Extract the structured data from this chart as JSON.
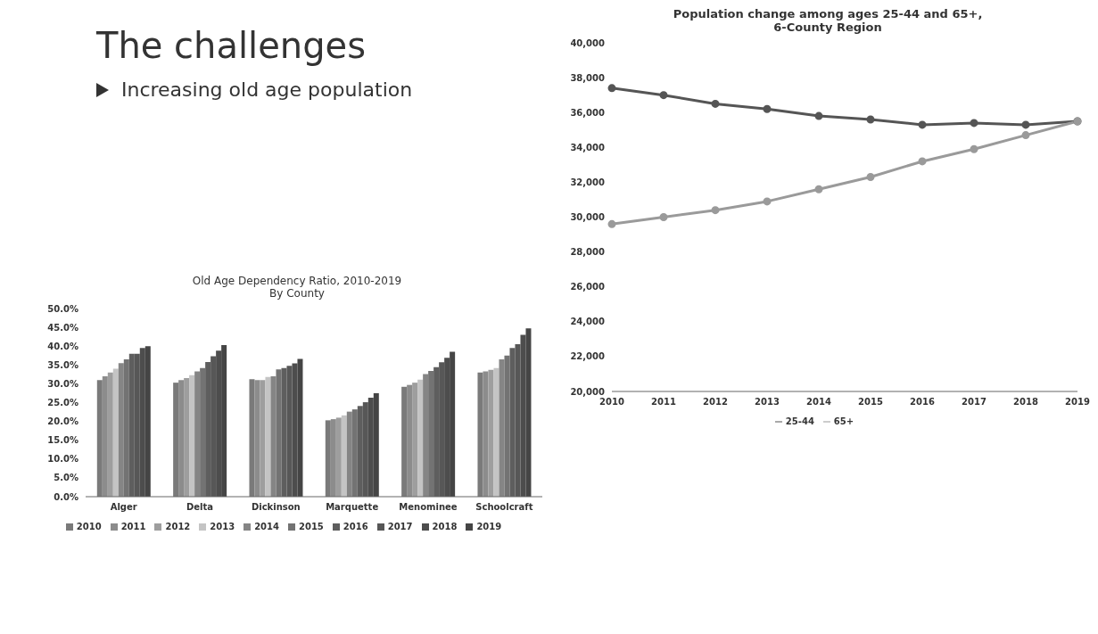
{
  "chart_data": [
    {
      "type": "other",
      "title": "The challenges",
      "annotations": [
        "Increasing old age population"
      ]
    },
    {
      "type": "bar",
      "title": "Old Age Dependency Ratio, 2010-2019\nBy County",
      "categories": [
        "Alger",
        "Delta",
        "Dickinson",
        "Marquette",
        "Menominee",
        "Schoolcraft"
      ],
      "series": [
        {
          "name": "2010",
          "color": "#7a7a7a",
          "values": [
            31.0,
            30.3,
            31.2,
            20.3,
            29.2,
            33.0
          ]
        },
        {
          "name": "2011",
          "color": "#8c8c8c",
          "values": [
            32.0,
            31.0,
            31.0,
            20.6,
            29.7,
            33.3
          ]
        },
        {
          "name": "2012",
          "color": "#9e9e9e",
          "values": [
            33.0,
            31.5,
            31.0,
            21.0,
            30.3,
            33.7
          ]
        },
        {
          "name": "2013",
          "color": "#c4c4c4",
          "values": [
            34.0,
            32.3,
            31.8,
            21.6,
            31.1,
            34.2
          ]
        },
        {
          "name": "2014",
          "color": "#858585",
          "values": [
            35.5,
            33.3,
            32.0,
            22.6,
            32.6,
            36.5
          ]
        },
        {
          "name": "2015",
          "color": "#737373",
          "values": [
            36.5,
            34.2,
            33.8,
            23.2,
            33.4,
            37.5
          ]
        },
        {
          "name": "2016",
          "color": "#5e5e5e",
          "values": [
            38.0,
            35.8,
            34.2,
            24.1,
            34.4,
            39.5
          ]
        },
        {
          "name": "2017",
          "color": "#575757",
          "values": [
            38.0,
            37.3,
            34.8,
            25.1,
            35.7,
            40.5
          ]
        },
        {
          "name": "2018",
          "color": "#4d4d4d",
          "values": [
            39.5,
            38.8,
            35.4,
            26.3,
            36.9,
            43.0
          ]
        },
        {
          "name": "2019",
          "color": "#454545",
          "values": [
            40.0,
            40.3,
            36.6,
            27.5,
            38.5,
            44.7
          ]
        }
      ],
      "ylim": [
        0,
        50
      ],
      "yticks": [
        {
          "value": 0,
          "label": "0.0%"
        },
        {
          "value": 5,
          "label": "5.0%"
        },
        {
          "value": 10,
          "label": "10.0%"
        },
        {
          "value": 15,
          "label": "15.0%"
        },
        {
          "value": 20,
          "label": "20.0%"
        },
        {
          "value": 25,
          "label": "25.0%"
        },
        {
          "value": 30,
          "label": "30.0%"
        },
        {
          "value": 35,
          "label": "35.0%"
        },
        {
          "value": 40,
          "label": "40.0%"
        },
        {
          "value": 45,
          "label": "45.0%"
        },
        {
          "value": 50,
          "label": "50.0%"
        }
      ],
      "legend": "bottom"
    },
    {
      "type": "line",
      "title": "Population change among ages 25-44 and 65+,\n6-County Region",
      "categories": [
        "2010",
        "2011",
        "2012",
        "2013",
        "2014",
        "2015",
        "2016",
        "2017",
        "2018",
        "2019"
      ],
      "series": [
        {
          "name": "25-44",
          "color": "#555555",
          "values": [
            37400,
            37000,
            36500,
            36200,
            35800,
            35600,
            35300,
            35400,
            35300,
            35500
          ]
        },
        {
          "name": "65+",
          "color": "#9a9a9a",
          "values": [
            29600,
            30000,
            30400,
            30900,
            31600,
            32300,
            33200,
            33900,
            34700,
            35500
          ]
        }
      ],
      "ylim": [
        20000,
        40000
      ],
      "yticks": [
        {
          "value": 20000,
          "label": "20,000"
        },
        {
          "value": 22000,
          "label": "22,000"
        },
        {
          "value": 24000,
          "label": "24,000"
        },
        {
          "value": 26000,
          "label": "26,000"
        },
        {
          "value": 28000,
          "label": "28,000"
        },
        {
          "value": 30000,
          "label": "30,000"
        },
        {
          "value": 32000,
          "label": "32,000"
        },
        {
          "value": 34000,
          "label": "34,000"
        },
        {
          "value": 36000,
          "label": "36,000"
        },
        {
          "value": 38000,
          "label": "38,000"
        },
        {
          "value": 40000,
          "label": "40,000"
        }
      ],
      "legend": "bottom",
      "marker": "circle"
    }
  ]
}
